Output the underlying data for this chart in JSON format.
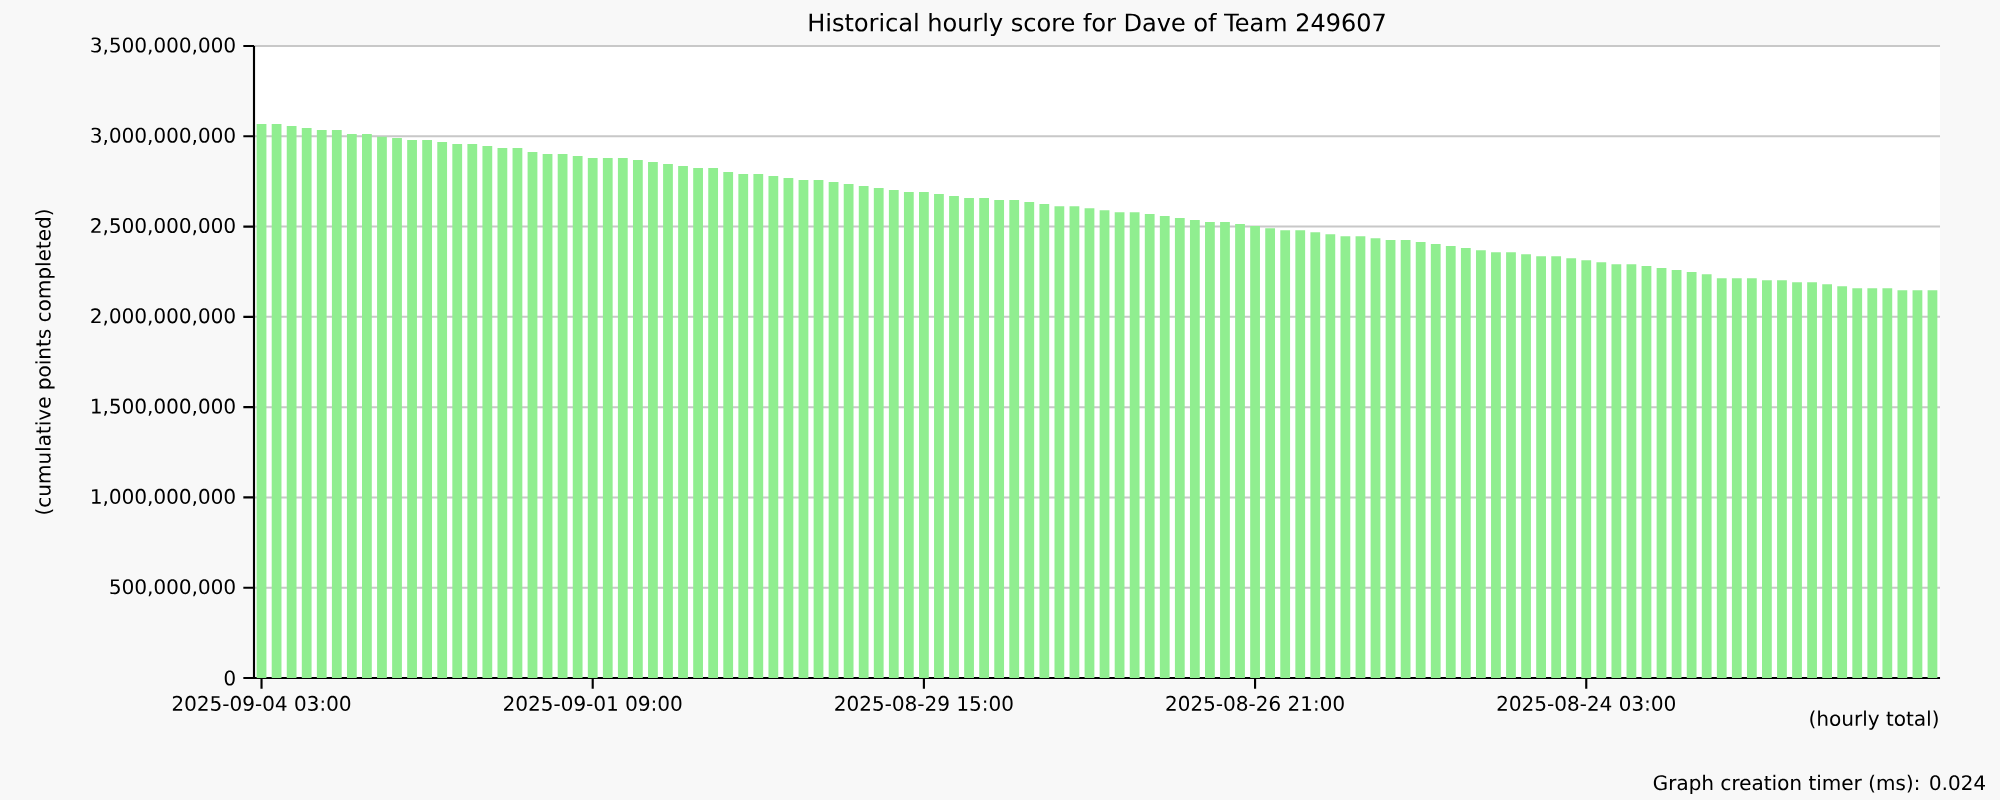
{
  "chart_data": {
    "type": "bar",
    "title": "Historical hourly score for Dave of Team 249607",
    "ylabel": "(cumulative points completed)",
    "annotations": [
      "(hourly total)",
      "Graph creation timer (ms): 0.024"
    ],
    "categories": [
      "2025-09-04 03:00",
      null,
      null,
      null,
      null,
      null,
      null,
      null,
      null,
      null,
      null,
      null,
      null,
      null,
      null,
      null,
      null,
      null,
      null,
      null,
      null,
      null,
      "2025-09-01 09:00",
      null,
      null,
      null,
      null,
      null,
      null,
      null,
      null,
      null,
      null,
      null,
      null,
      null,
      null,
      null,
      null,
      null,
      null,
      null,
      null,
      null,
      "2025-08-29 15:00",
      null,
      null,
      null,
      null,
      null,
      null,
      null,
      null,
      null,
      null,
      null,
      null,
      null,
      null,
      null,
      null,
      null,
      null,
      null,
      null,
      null,
      "2025-08-26 21:00",
      null,
      null,
      null,
      null,
      null,
      null,
      null,
      null,
      null,
      null,
      null,
      null,
      null,
      null,
      null,
      null,
      null,
      null,
      null,
      null,
      null,
      "2025-08-24 03:00",
      null,
      null,
      null,
      null,
      null,
      null,
      null,
      null,
      null,
      null,
      null,
      null,
      null,
      null,
      null,
      null,
      null,
      null,
      null,
      null,
      null,
      null,
      null
    ],
    "values": [
      3068000000,
      3068000000,
      3057000000,
      3046000000,
      3035000000,
      3035000000,
      3013000000,
      3013000000,
      2998000000,
      2991000000,
      2980000000,
      2980000000,
      2969000000,
      2957000000,
      2957000000,
      2946000000,
      2935000000,
      2935000000,
      2913000000,
      2902000000,
      2902000000,
      2891000000,
      2880000000,
      2880000000,
      2880000000,
      2869000000,
      2857000000,
      2846000000,
      2835000000,
      2824000000,
      2824000000,
      2802000000,
      2791000000,
      2791000000,
      2780000000,
      2769000000,
      2758000000,
      2758000000,
      2747000000,
      2736000000,
      2725000000,
      2713000000,
      2702000000,
      2691000000,
      2691000000,
      2680000000,
      2669000000,
      2658000000,
      2658000000,
      2647000000,
      2647000000,
      2636000000,
      2625000000,
      2613000000,
      2613000000,
      2602000000,
      2591000000,
      2580000000,
      2580000000,
      2569000000,
      2558000000,
      2547000000,
      2536000000,
      2525000000,
      2525000000,
      2514000000,
      2503000000,
      2491000000,
      2480000000,
      2480000000,
      2469000000,
      2458000000,
      2447000000,
      2447000000,
      2436000000,
      2425000000,
      2425000000,
      2414000000,
      2403000000,
      2392000000,
      2381000000,
      2369000000,
      2358000000,
      2358000000,
      2347000000,
      2336000000,
      2336000000,
      2325000000,
      2314000000,
      2303000000,
      2292000000,
      2292000000,
      2281000000,
      2270000000,
      2259000000,
      2248000000,
      2236000000,
      2214000000,
      2214000000,
      2214000000,
      2203000000,
      2203000000,
      2192000000,
      2192000000,
      2181000000,
      2170000000,
      2159000000,
      2159000000,
      2159000000,
      2148000000,
      2148000000,
      2148000000
    ],
    "color": "#90ee90",
    "ylim": [
      0,
      3500000000
    ],
    "yticks": [
      0,
      {
        "value": 500000000,
        "label": "500,000,000"
      },
      {
        "value": 1000000000,
        "label": "1,000,000,000"
      },
      {
        "value": 1500000000,
        "label": "1,500,000,000"
      },
      {
        "value": 2000000000,
        "label": "2,000,000,000"
      },
      {
        "value": 2500000000,
        "label": "2,500,000,000"
      },
      {
        "value": 3000000000,
        "label": "3,000,000,000"
      },
      {
        "value": 3500000000,
        "label": "3,500,000,000"
      }
    ],
    "grid": "y"
  }
}
